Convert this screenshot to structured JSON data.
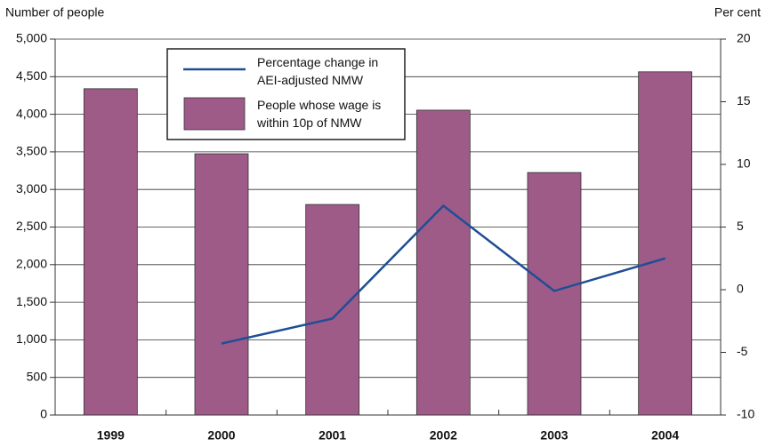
{
  "chart_data": {
    "type": "bar",
    "y_label": "Number of people",
    "y2_label": "Per cent",
    "categories": [
      "1999",
      "2000",
      "2001",
      "2002",
      "2003",
      "2004"
    ],
    "series": [
      {
        "name": "Percentage change in AEI-adjusted NMW",
        "type": "line",
        "axis": "y2",
        "color": "#1f4e96",
        "values": [
          null,
          -4.3,
          -2.3,
          6.7,
          -0.1,
          2.5
        ]
      },
      {
        "name": "People whose wage is within 10p of NMW",
        "type": "bar",
        "axis": "y",
        "color": "#9e5b88",
        "values": [
          4340,
          3475,
          2800,
          4055,
          3225,
          4565
        ]
      }
    ],
    "ylim": [
      0,
      5000
    ],
    "yticks": [
      0,
      500,
      {
        "value": 1000,
        "label": "1,000"
      },
      {
        "value": 1500,
        "label": "1,500"
      },
      {
        "value": 2000,
        "label": "2,000"
      },
      {
        "value": 2500,
        "label": "2,500"
      },
      {
        "value": 3000,
        "label": "3,000"
      },
      {
        "value": 3500,
        "label": "3,500"
      },
      {
        "value": 4000,
        "label": "4,000"
      },
      {
        "value": 4500,
        "label": "4,500"
      },
      {
        "value": 5000,
        "label": "5,000"
      }
    ],
    "y2lim": [
      -10,
      20
    ],
    "y2ticks": [
      -10,
      -5,
      0,
      5,
      10,
      15,
      20
    ],
    "grid": true
  }
}
